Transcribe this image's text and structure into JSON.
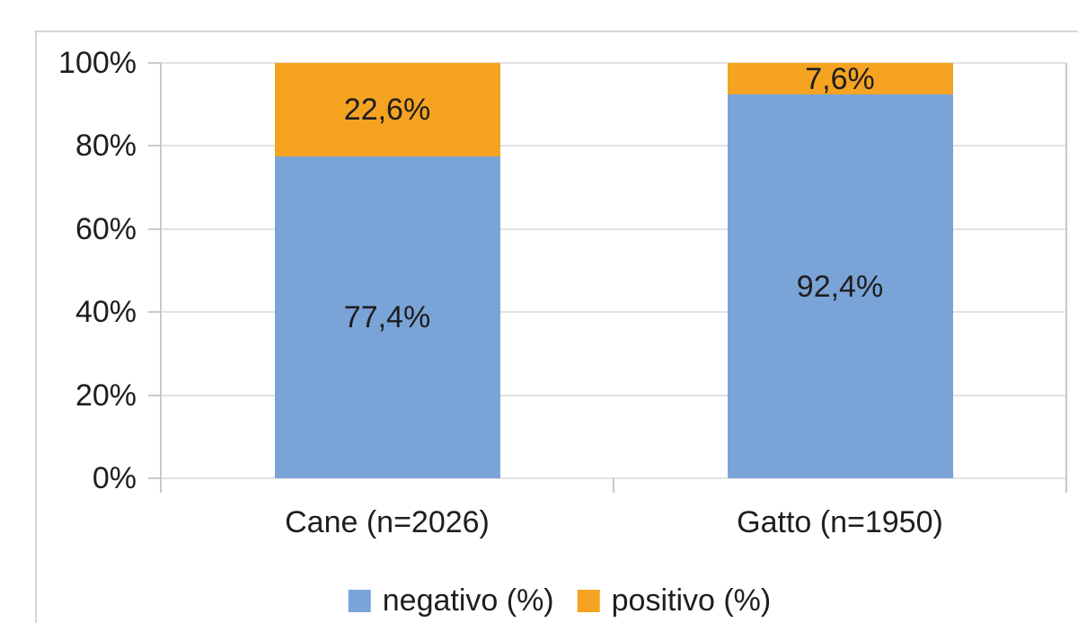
{
  "chart_data": {
    "type": "bar",
    "stacked": true,
    "orientation": "vertical",
    "title": "",
    "categories": [
      "Cane (n=2026)",
      "Gatto (n=1950)"
    ],
    "series": [
      {
        "name": "negativo (%)",
        "color": "#7AA4D8",
        "values": [
          77.4,
          92.4
        ],
        "labels": [
          "77,4%",
          "92,4%"
        ]
      },
      {
        "name": "positivo (%)",
        "color": "#F5A321",
        "values": [
          22.6,
          7.6
        ],
        "labels": [
          "22,6%",
          "7,6%"
        ]
      }
    ],
    "y_axis": {
      "min": 0,
      "max": 100,
      "tick_values": [
        0,
        20,
        40,
        60,
        80,
        100
      ],
      "tick_labels": [
        "0%",
        "20%",
        "40%",
        "60%",
        "80%",
        "100%"
      ]
    },
    "x_axis": {
      "label": ""
    },
    "legend": {
      "position": "bottom"
    },
    "grid": true,
    "colors": {
      "text": "#1E1E1E",
      "gridline": "#E2E2E2",
      "axis": "#C9C9C9",
      "frame_border": "#D5D5D5",
      "background": "#FFFFFF"
    }
  }
}
